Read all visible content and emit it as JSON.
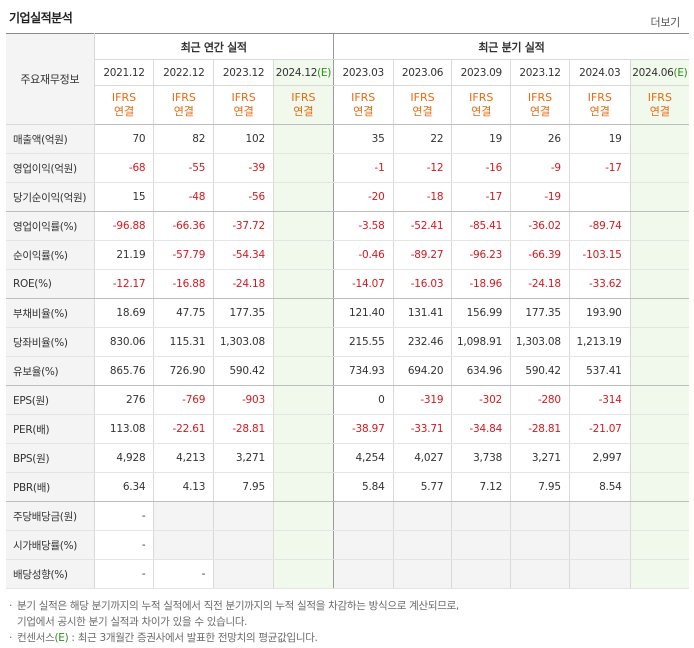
{
  "header": {
    "title": "기업실적분석",
    "more_label": "더보기"
  },
  "table": {
    "corner_label": "주요재무정보",
    "annual_group_label": "최근 연간 실적",
    "quarter_group_label": "최근 분기 실적",
    "annual_periods": [
      "2021.12",
      "2022.12",
      "2023.12",
      "2024.12"
    ],
    "quarter_periods": [
      "2023.03",
      "2023.06",
      "2023.09",
      "2023.12",
      "2024.03",
      "2024.06"
    ],
    "estimate_mark": "(E)",
    "ifrs_line1": "IFRS",
    "ifrs_line2": "연결",
    "rows": [
      {
        "label": "매출액(억원)",
        "annual": [
          "70",
          "82",
          "102",
          ""
        ],
        "quarter": [
          "35",
          "22",
          "19",
          "26",
          "19",
          ""
        ]
      },
      {
        "label": "영업이익(억원)",
        "annual": [
          "-68",
          "-55",
          "-39",
          ""
        ],
        "quarter": [
          "-1",
          "-12",
          "-16",
          "-9",
          "-17",
          ""
        ]
      },
      {
        "label": "당기순이익(억원)",
        "annual": [
          "15",
          "-48",
          "-56",
          ""
        ],
        "quarter": [
          "-20",
          "-18",
          "-17",
          "-19",
          "",
          ""
        ]
      },
      {
        "label": "영업이익률(%)",
        "annual": [
          "-96.88",
          "-66.36",
          "-37.72",
          ""
        ],
        "quarter": [
          "-3.58",
          "-52.41",
          "-85.41",
          "-36.02",
          "-89.74",
          ""
        ]
      },
      {
        "label": "순이익률(%)",
        "annual": [
          "21.19",
          "-57.79",
          "-54.34",
          ""
        ],
        "quarter": [
          "-0.46",
          "-89.27",
          "-96.23",
          "-66.39",
          "-103.15",
          ""
        ]
      },
      {
        "label": "ROE(%)",
        "annual": [
          "-12.17",
          "-16.88",
          "-24.18",
          ""
        ],
        "quarter": [
          "-14.07",
          "-16.03",
          "-18.96",
          "-24.18",
          "-33.62",
          ""
        ]
      },
      {
        "label": "부채비율(%)",
        "annual": [
          "18.69",
          "47.75",
          "177.35",
          ""
        ],
        "quarter": [
          "121.40",
          "131.41",
          "156.99",
          "177.35",
          "193.90",
          ""
        ]
      },
      {
        "label": "당좌비율(%)",
        "annual": [
          "830.06",
          "115.31",
          "1,303.08",
          ""
        ],
        "quarter": [
          "215.55",
          "232.46",
          "1,098.91",
          "1,303.08",
          "1,213.19",
          ""
        ]
      },
      {
        "label": "유보율(%)",
        "annual": [
          "865.76",
          "726.90",
          "590.42",
          ""
        ],
        "quarter": [
          "734.93",
          "694.20",
          "634.96",
          "590.42",
          "537.41",
          ""
        ]
      },
      {
        "label": "EPS(원)",
        "annual": [
          "276",
          "-769",
          "-903",
          ""
        ],
        "quarter": [
          "0",
          "-319",
          "-302",
          "-280",
          "-314",
          ""
        ]
      },
      {
        "label": "PER(배)",
        "annual": [
          "113.08",
          "-22.61",
          "-28.81",
          ""
        ],
        "quarter": [
          "-38.97",
          "-33.71",
          "-34.84",
          "-28.81",
          "-21.07",
          ""
        ]
      },
      {
        "label": "BPS(원)",
        "annual": [
          "4,928",
          "4,213",
          "3,271",
          ""
        ],
        "quarter": [
          "4,254",
          "4,027",
          "3,738",
          "3,271",
          "2,997",
          ""
        ]
      },
      {
        "label": "PBR(배)",
        "annual": [
          "6.34",
          "4.13",
          "7.95",
          ""
        ],
        "quarter": [
          "5.84",
          "5.77",
          "7.12",
          "7.95",
          "8.54",
          ""
        ]
      },
      {
        "label": "주당배당금(원)",
        "annual": [
          "-",
          "",
          "",
          ""
        ],
        "quarter": [
          "",
          "",
          "",
          "",
          "",
          ""
        ]
      },
      {
        "label": "시가배당률(%)",
        "annual": [
          "-",
          "",
          "",
          ""
        ],
        "quarter": [
          "",
          "",
          "",
          "",
          "",
          ""
        ]
      },
      {
        "label": "배당성향(%)",
        "annual": [
          "-",
          "-",
          "",
          ""
        ],
        "quarter": [
          "",
          "",
          "",
          "",
          "",
          ""
        ]
      }
    ],
    "group_end_rows": [
      2,
      5,
      8,
      12
    ]
  },
  "notes": {
    "bullet": "·",
    "note1_line1": "분기 실적은 해당 분기까지의 누적 실적에서 직전 분기까지의 누적 실적을 차감하는 방식으로 계산되므로,",
    "note1_line2": "기업에서 공시한 분기 실적과 차이가 있을 수 있습니다.",
    "note2_pre": "컨센서스",
    "note2_mark": "(E)",
    "note2_post": " : 최근 3개월간 증권사에서 발표한 전망치의 평균값입니다."
  }
}
